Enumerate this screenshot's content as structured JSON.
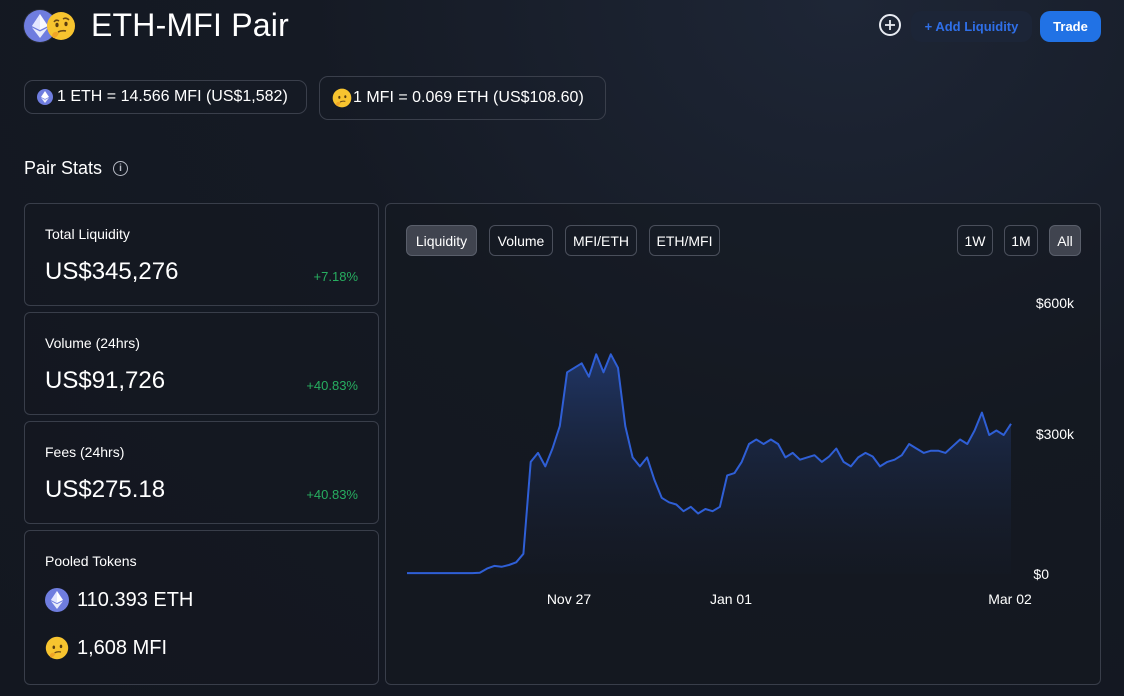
{
  "header": {
    "title": "ETH-MFI Pair",
    "add_liquidity_label": "+ Add Liquidity",
    "trade_label": "Trade",
    "icons": [
      "ethereum-logo",
      "thinking-face-emoji",
      "plus-circle-icon"
    ]
  },
  "prices": {
    "eth_price": "1 ETH = 14.566 MFI (US$1,582)",
    "mfi_price": "1 MFI = 0.069 ETH (US$108.60)"
  },
  "pair_stats": {
    "title": "Pair Stats",
    "info_icon": "i",
    "total_liquidity": {
      "label": "Total Liquidity",
      "value": "US$345,276",
      "change": "+7.18%"
    },
    "volume": {
      "label": "Volume (24hrs)",
      "value": "US$91,726",
      "change": "+40.83%"
    },
    "fees": {
      "label": "Fees (24hrs)",
      "value": "US$275.18",
      "change": "+40.83%"
    },
    "pooled": {
      "label": "Pooled Tokens",
      "eth": "110.393 ETH",
      "mfi": "1,608 MFI"
    }
  },
  "chart_tabs": {
    "liquidity": "Liquidity",
    "volume": "Volume",
    "mfi_eth": "MFI/ETH",
    "eth_mfi": "ETH/MFI",
    "w1": "1W",
    "m1": "1M",
    "all": "All",
    "active": "Liquidity",
    "active_range": "All"
  },
  "colors": {
    "accent": "#2172e5",
    "line": "#2f5fd6",
    "positive": "#27ae60"
  },
  "chart_data": {
    "type": "area",
    "series": [
      {
        "name": "Liquidity"
      }
    ],
    "x_start": "2020-11-02",
    "x_end": "2021-03-02",
    "x_ticks": [
      "Nov 27",
      "Jan 01",
      "Mar 02"
    ],
    "y_ticks": [
      "$600k",
      "$300k",
      "$0"
    ],
    "ylim": [
      0,
      600000
    ],
    "values": [
      2000,
      2000,
      2000,
      2000,
      2000,
      2000,
      2000,
      2000,
      2000,
      2000,
      3000,
      12000,
      18000,
      16000,
      20000,
      26000,
      45000,
      250000,
      270000,
      240000,
      280000,
      330000,
      450000,
      460000,
      470000,
      440000,
      490000,
      450000,
      490000,
      460000,
      330000,
      260000,
      240000,
      260000,
      210000,
      170000,
      160000,
      155000,
      140000,
      150000,
      135000,
      145000,
      140000,
      150000,
      220000,
      225000,
      250000,
      290000,
      300000,
      290000,
      300000,
      290000,
      260000,
      270000,
      255000,
      260000,
      265000,
      250000,
      262000,
      280000,
      250000,
      240000,
      260000,
      270000,
      262000,
      240000,
      250000,
      255000,
      265000,
      290000,
      280000,
      270000,
      275000,
      275000,
      270000,
      285000,
      300000,
      290000,
      320000,
      360000,
      310000,
      320000,
      310000,
      335000
    ]
  }
}
